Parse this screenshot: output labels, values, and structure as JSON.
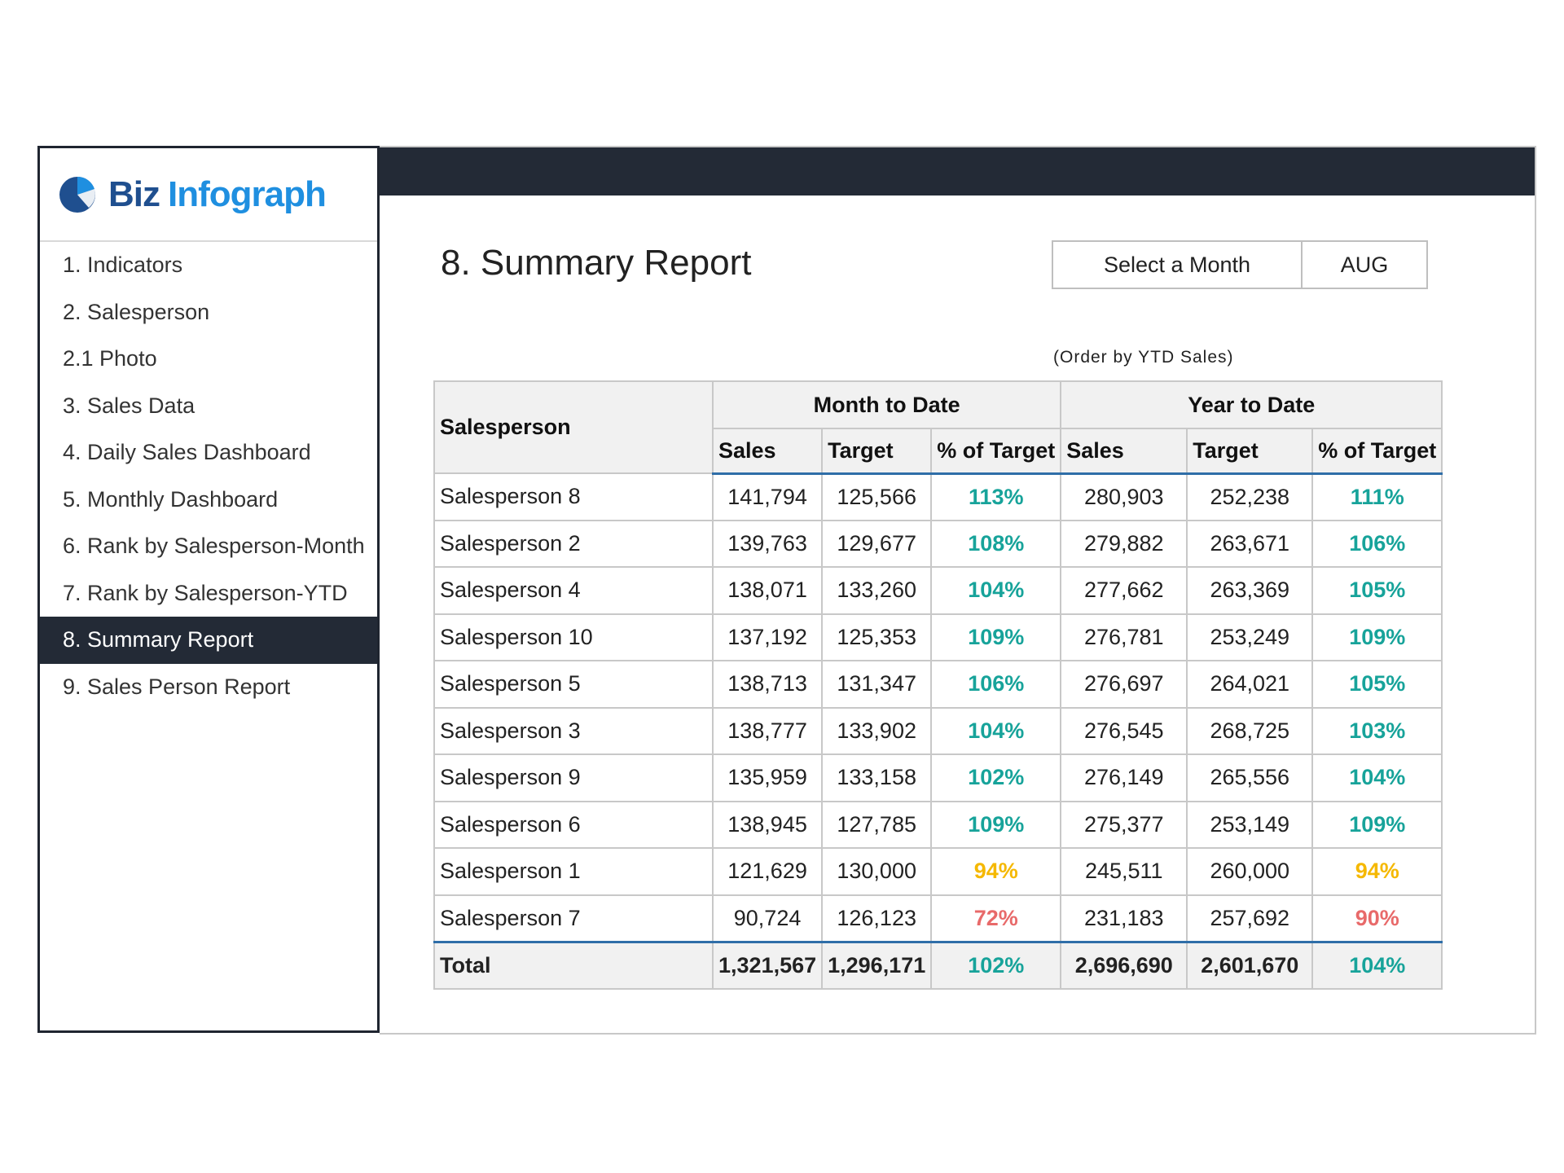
{
  "logo": {
    "brand_part1": "Biz",
    "brand_part2": "Infograph"
  },
  "nav": {
    "items": [
      {
        "label": "1. Indicators"
      },
      {
        "label": "2. Salesperson"
      },
      {
        "label": "2.1 Photo"
      },
      {
        "label": "3. Sales Data"
      },
      {
        "label": "4. Daily Sales Dashboard"
      },
      {
        "label": "5. Monthly Dashboard"
      },
      {
        "label": "6. Rank by Salesperson-Month"
      },
      {
        "label": "7. Rank by Salesperson-YTD"
      },
      {
        "label": "8. Summary Report",
        "active": true
      },
      {
        "label": "9. Sales Person Report"
      }
    ]
  },
  "header": {
    "title": "8. Summary Report",
    "month_select_label": "Select a Month",
    "month_value": "AUG",
    "order_note": "(Order by YTD Sales)"
  },
  "table": {
    "col_salesperson": "Salesperson",
    "group_mtd": "Month to Date",
    "group_ytd": "Year to Date",
    "col_sales": "Sales",
    "col_target": "Target",
    "col_pct": "% of Target",
    "rows": [
      {
        "name": "Salesperson 8",
        "mtd_sales": "141,794",
        "mtd_target": "125,566",
        "mtd_pct": "113%",
        "ytd_sales": "280,903",
        "ytd_target": "252,238",
        "ytd_pct": "111%"
      },
      {
        "name": "Salesperson 2",
        "mtd_sales": "139,763",
        "mtd_target": "129,677",
        "mtd_pct": "108%",
        "ytd_sales": "279,882",
        "ytd_target": "263,671",
        "ytd_pct": "106%"
      },
      {
        "name": "Salesperson 4",
        "mtd_sales": "138,071",
        "mtd_target": "133,260",
        "mtd_pct": "104%",
        "ytd_sales": "277,662",
        "ytd_target": "263,369",
        "ytd_pct": "105%"
      },
      {
        "name": "Salesperson 10",
        "mtd_sales": "137,192",
        "mtd_target": "125,353",
        "mtd_pct": "109%",
        "ytd_sales": "276,781",
        "ytd_target": "253,249",
        "ytd_pct": "109%"
      },
      {
        "name": "Salesperson 5",
        "mtd_sales": "138,713",
        "mtd_target": "131,347",
        "mtd_pct": "106%",
        "ytd_sales": "276,697",
        "ytd_target": "264,021",
        "ytd_pct": "105%"
      },
      {
        "name": "Salesperson 3",
        "mtd_sales": "138,777",
        "mtd_target": "133,902",
        "mtd_pct": "104%",
        "ytd_sales": "276,545",
        "ytd_target": "268,725",
        "ytd_pct": "103%"
      },
      {
        "name": "Salesperson 9",
        "mtd_sales": "135,959",
        "mtd_target": "133,158",
        "mtd_pct": "102%",
        "ytd_sales": "276,149",
        "ytd_target": "265,556",
        "ytd_pct": "104%"
      },
      {
        "name": "Salesperson 6",
        "mtd_sales": "138,945",
        "mtd_target": "127,785",
        "mtd_pct": "109%",
        "ytd_sales": "275,377",
        "ytd_target": "253,149",
        "ytd_pct": "109%"
      },
      {
        "name": "Salesperson 1",
        "mtd_sales": "121,629",
        "mtd_target": "130,000",
        "mtd_pct": "94%",
        "ytd_sales": "245,511",
        "ytd_target": "260,000",
        "ytd_pct": "94%"
      },
      {
        "name": "Salesperson 7",
        "mtd_sales": "90,724",
        "mtd_target": "126,123",
        "mtd_pct": "72%",
        "ytd_sales": "231,183",
        "ytd_target": "257,692",
        "ytd_pct": "90%"
      }
    ],
    "total": {
      "name": "Total",
      "mtd_sales": "1,321,567",
      "mtd_target": "1,296,171",
      "mtd_pct": "102%",
      "ytd_sales": "2,696,690",
      "ytd_target": "2,601,670",
      "ytd_pct": "104%"
    }
  },
  "colors": {
    "good": "#17a39a",
    "warn": "#f5b800",
    "bad": "#e86a6a",
    "dark": "#232a36",
    "accent_line": "#2f6ea8"
  }
}
